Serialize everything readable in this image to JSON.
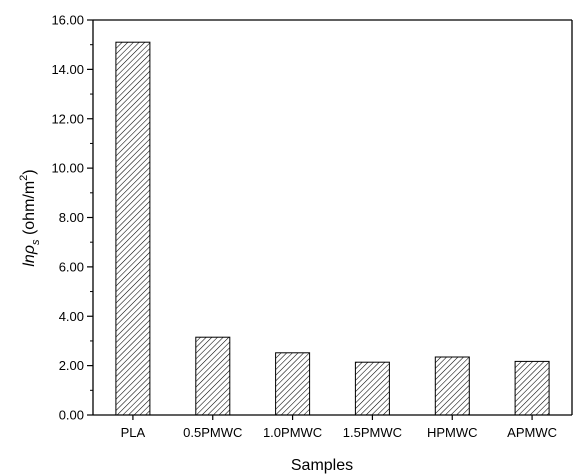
{
  "chart_data": {
    "type": "bar",
    "categories": [
      "PLA",
      "0.5PMWC",
      "1.0PMWC",
      "1.5PMWC",
      "HPMWC",
      "APMWC"
    ],
    "values": [
      15.1,
      3.15,
      2.52,
      2.14,
      2.35,
      2.17
    ],
    "xlabel": "Samples",
    "ylabel": {
      "prefix": "ln",
      "symbol": "ρ",
      "subscript": "s",
      "units": " (ohm/m",
      "superscript": "2",
      "close": ")"
    },
    "ylim": [
      0,
      16
    ],
    "yticks": [
      "0.00",
      "2.00",
      "4.00",
      "6.00",
      "8.00",
      "10.00",
      "12.00",
      "14.00",
      "16.00"
    ],
    "bar_fill": "diagonal-hatch",
    "grid": false,
    "colors": {
      "bar_stroke": "#000000",
      "hatch": "#000000",
      "background": "#ffffff"
    }
  }
}
